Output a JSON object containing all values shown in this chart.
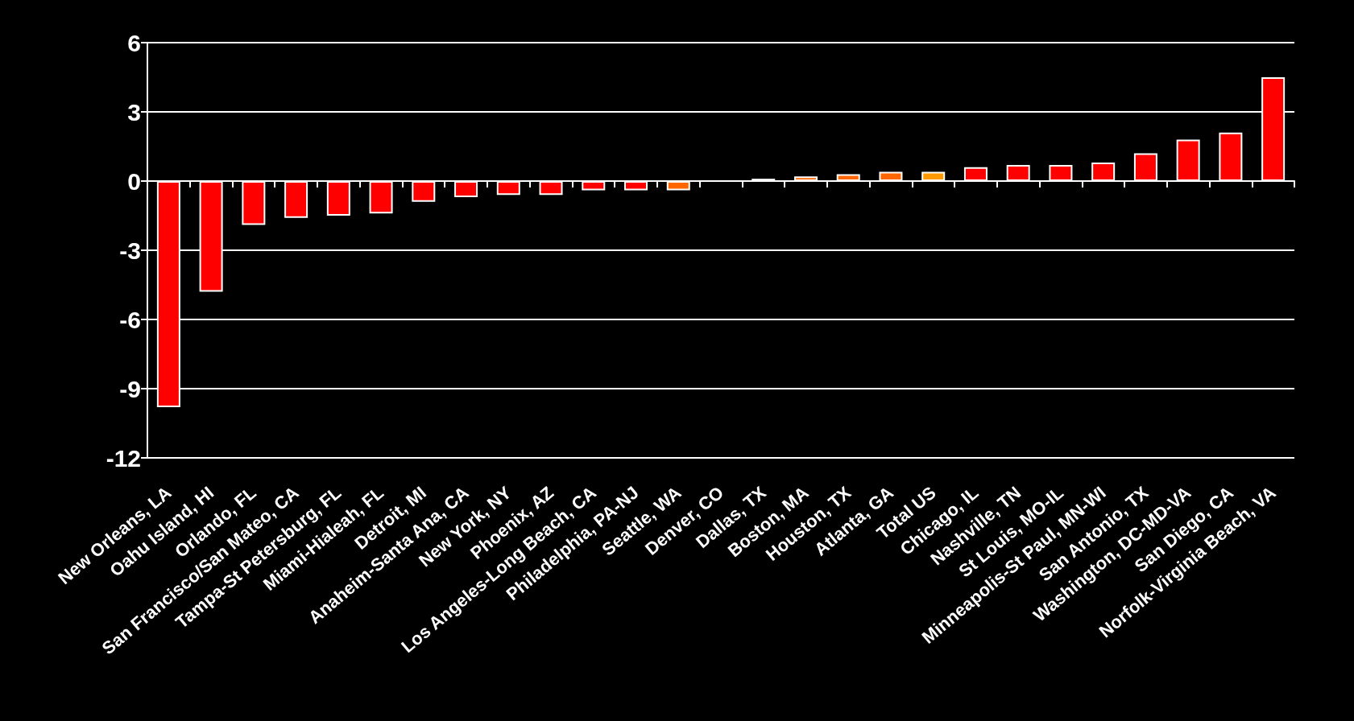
{
  "chart_data": {
    "type": "bar",
    "categories": [
      "New Orleans, LA",
      "Oahu Island, HI",
      "Orlando, FL",
      "San Francisco/San Mateo, CA",
      "Tampa-St Petersburg, FL",
      "Miami-Hialeah, FL",
      "Detroit, MI",
      "Anaheim-Santa Ana, CA",
      "New York, NY",
      "Phoenix, AZ",
      "Los Angeles-Long Beach, CA",
      "Philadelphia, PA-NJ",
      "Seattle, WA",
      "Denver, CO",
      "Dallas, TX",
      "Boston, MA",
      "Houston, TX",
      "Atlanta, GA",
      "Total US",
      "Chicago, IL",
      "Nashville, TN",
      "St Louis, MO-IL",
      "Minneapolis-St Paul, MN-WI",
      "San Antonio, TX",
      "Washington, DC-MD-VA",
      "San Diego, CA",
      "Norfolk-Virginia Beach, VA"
    ],
    "values": [
      -9.8,
      -4.8,
      -1.9,
      -1.6,
      -1.5,
      -1.4,
      -0.9,
      -0.7,
      -0.6,
      -0.6,
      -0.4,
      -0.4,
      -0.4,
      0,
      0.1,
      0.2,
      0.3,
      0.4,
      0.4,
      0.6,
      0.7,
      0.7,
      0.8,
      1.2,
      1.8,
      2.1,
      4.5
    ],
    "colors": [
      "#ff0000",
      "#ff0000",
      "#ff0000",
      "#ff0000",
      "#ff0000",
      "#ff0000",
      "#ff0000",
      "#ff0000",
      "#ff0000",
      "#ff0000",
      "#ff0000",
      "#ff0000",
      "#ff6600",
      "#ff6600",
      "#ff6600",
      "#ff6600",
      "#ff6600",
      "#ff6600",
      "#ff9900",
      "#ff0000",
      "#ff0000",
      "#ff0000",
      "#ff0000",
      "#ff0000",
      "#ff0000",
      "#ff0000",
      "#ff0000"
    ],
    "ylim": [
      -12,
      6
    ],
    "yticks": [
      -12,
      -9,
      -6,
      -3,
      0,
      3,
      6
    ],
    "grid": "y"
  }
}
